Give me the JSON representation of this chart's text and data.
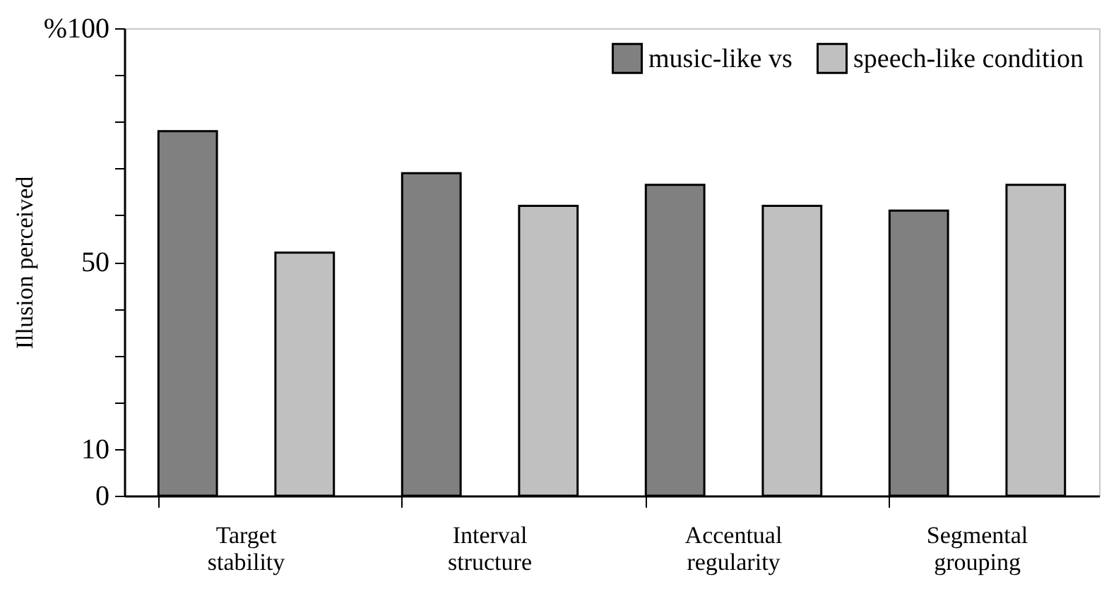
{
  "chart_data": {
    "type": "bar",
    "ylabel": "Illusion perceived",
    "categories": [
      "Target stability",
      "Interval structure",
      "Accentual regularity",
      "Segmental grouping"
    ],
    "series": [
      {
        "name": "music-like vs",
        "color": "#808080",
        "values": [
          78,
          69,
          66.5,
          61
        ]
      },
      {
        "name": "speech-like condition",
        "color": "#c0c0c0",
        "values": [
          52,
          62,
          62,
          66.5
        ]
      }
    ],
    "ylim": [
      0,
      100
    ],
    "yticks": [
      0,
      10,
      {
        "value": 20,
        "label": null
      },
      {
        "value": 30,
        "label": null
      },
      {
        "value": 40,
        "label": null
      },
      50,
      {
        "value": 60,
        "label": null
      },
      {
        "value": 70,
        "label": null
      },
      {
        "value": 80,
        "label": null
      },
      {
        "value": 90,
        "label": null
      },
      {
        "value": 100,
        "label": "%100"
      }
    ],
    "legend": "top right",
    "grid": false
  }
}
